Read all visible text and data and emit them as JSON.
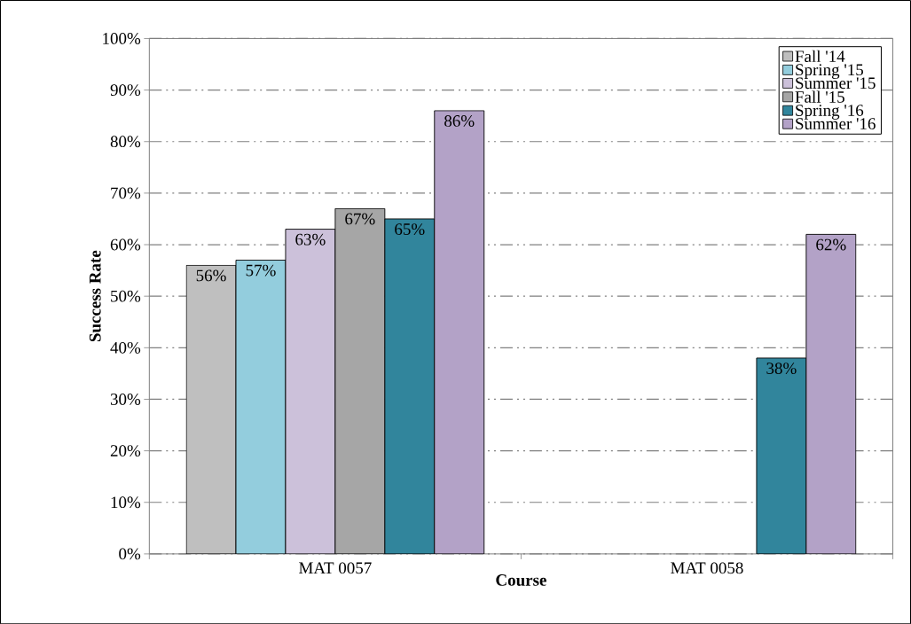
{
  "chart_data": {
    "type": "bar",
    "xlabel": "Course",
    "ylabel": "Success Rate",
    "categories": [
      "MAT 0057",
      "MAT 0058"
    ],
    "series": [
      {
        "name": "Fall '14",
        "color": "#bfbfbf",
        "values": [
          56,
          null
        ],
        "value_labels": [
          "56%",
          null
        ]
      },
      {
        "name": "Spring '15",
        "color": "#93cddd",
        "values": [
          57,
          null
        ],
        "value_labels": [
          "57%",
          null
        ]
      },
      {
        "name": "Summer '15",
        "color": "#ccc1da",
        "values": [
          63,
          null
        ],
        "value_labels": [
          "63%",
          null
        ]
      },
      {
        "name": "Fall '15",
        "color": "#a6a6a6",
        "values": [
          67,
          null
        ],
        "value_labels": [
          "67%",
          null
        ]
      },
      {
        "name": "Spring '16",
        "color": "#31859c",
        "values": [
          65,
          38
        ],
        "value_labels": [
          "65%",
          "38%"
        ]
      },
      {
        "name": "Summer '16",
        "color": "#b3a2c7",
        "values": [
          86,
          62
        ],
        "value_labels": [
          "86%",
          "62%"
        ]
      }
    ],
    "ylim": [
      0,
      100
    ],
    "yticks": [
      {
        "value": 0,
        "label": "0%"
      },
      {
        "value": 10,
        "label": "10%"
      },
      {
        "value": 20,
        "label": "20%"
      },
      {
        "value": 30,
        "label": "30%"
      },
      {
        "value": 40,
        "label": "40%"
      },
      {
        "value": 50,
        "label": "50%"
      },
      {
        "value": 60,
        "label": "60%"
      },
      {
        "value": 70,
        "label": "70%"
      },
      {
        "value": 80,
        "label": "80%"
      },
      {
        "value": 90,
        "label": "90%"
      },
      {
        "value": 100,
        "label": "100%"
      }
    ],
    "grid": "y",
    "legend": "top right"
  }
}
